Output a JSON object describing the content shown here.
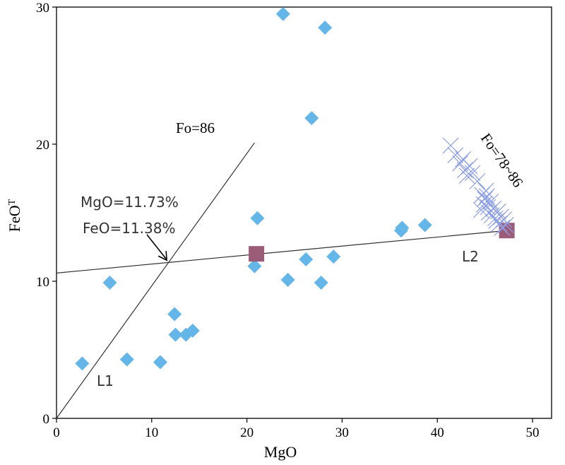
{
  "chart_data": {
    "type": "scatter",
    "xlabel": "MgO",
    "ylabel": "FeO",
    "ylabel_sup": "T",
    "xlim": [
      0,
      52
    ],
    "ylim": [
      0,
      30
    ],
    "xticks": [
      0,
      10,
      20,
      30,
      40,
      50
    ],
    "yticks": [
      0,
      10,
      20,
      30
    ],
    "xtick_labels": [
      "0",
      "10",
      "20",
      "30",
      "40",
      "50"
    ],
    "ytick_labels": [
      "0",
      "10",
      "20",
      "30"
    ],
    "grid": false,
    "colors": {
      "diamond": "#64b6e8",
      "square": "#9b5c7a",
      "cross": "#8d9fe3",
      "line": "#333333"
    },
    "series": [
      {
        "name": "diamonds",
        "marker": "diamond",
        "points": [
          [
            2.7,
            4.0
          ],
          [
            5.6,
            9.9
          ],
          [
            7.4,
            4.3
          ],
          [
            10.9,
            4.1
          ],
          [
            12.4,
            7.6
          ],
          [
            12.5,
            6.1
          ],
          [
            13.6,
            6.1
          ],
          [
            14.3,
            6.4
          ],
          [
            20.8,
            11.1
          ],
          [
            21.1,
            14.6
          ],
          [
            23.8,
            29.5
          ],
          [
            24.3,
            10.1
          ],
          [
            26.2,
            11.6
          ],
          [
            26.8,
            21.9
          ],
          [
            27.8,
            9.9
          ],
          [
            28.2,
            28.5
          ],
          [
            29.1,
            11.8
          ],
          [
            36.2,
            13.7
          ],
          [
            36.3,
            13.9
          ],
          [
            38.7,
            14.1
          ]
        ]
      },
      {
        "name": "squares",
        "marker": "square",
        "points": [
          [
            21.0,
            12.0
          ],
          [
            47.3,
            13.7
          ]
        ]
      },
      {
        "name": "crosses (Fo=78~86)",
        "marker": "cross",
        "points": [
          [
            41.4,
            19.9
          ],
          [
            41.9,
            19.2
          ],
          [
            42.4,
            18.6
          ],
          [
            42.9,
            18.1
          ],
          [
            43.4,
            18.4
          ],
          [
            43.1,
            17.7
          ],
          [
            43.7,
            17.9
          ],
          [
            44.2,
            17.3
          ],
          [
            42.7,
            18.9
          ],
          [
            44.7,
            16.3
          ],
          [
            45.0,
            16.0
          ],
          [
            45.2,
            16.2
          ],
          [
            44.9,
            15.6
          ],
          [
            45.3,
            15.4
          ],
          [
            45.6,
            15.8
          ],
          [
            45.4,
            15.0
          ],
          [
            45.9,
            15.3
          ],
          [
            45.7,
            14.8
          ],
          [
            46.1,
            14.6
          ],
          [
            46.4,
            15.1
          ],
          [
            46.2,
            14.4
          ],
          [
            46.7,
            14.7
          ],
          [
            46.5,
            14.2
          ],
          [
            47.0,
            14.5
          ],
          [
            47.2,
            14.1
          ],
          [
            46.8,
            13.9
          ],
          [
            45.1,
            16.6
          ],
          [
            44.6,
            15.2
          ]
        ]
      }
    ],
    "lines": [
      {
        "name": "L1",
        "from": [
          0,
          0
        ],
        "to": [
          20.8,
          20.1
        ]
      },
      {
        "name": "L2",
        "from": [
          0,
          10.6
        ],
        "to": [
          47.3,
          13.7
        ]
      }
    ],
    "annotations": {
      "l1_label": "L1",
      "l2_label": "L2",
      "fo86": "Fo=86",
      "fo78_86": "Fo=78~86",
      "mgo_value": "MgO=11.73%",
      "feo_value": "FeO=11.38%",
      "intersection": [
        11.73,
        11.38
      ]
    }
  }
}
